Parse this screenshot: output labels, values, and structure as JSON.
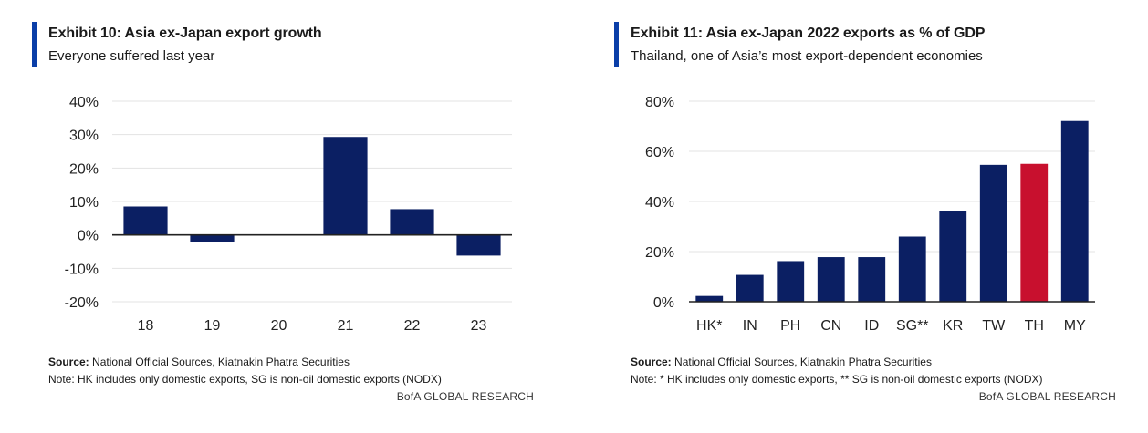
{
  "colors": {
    "accent": "#0a3ea8",
    "bar": "#0b1f63",
    "highlight": "#c8102e",
    "grid": "#e3e3e3",
    "axis": "#222222"
  },
  "exhibit10": {
    "title": "Exhibit 10: Asia ex-Japan export growth",
    "subtitle": "Everyone suffered last year",
    "source_label": "Source:",
    "source_text": " National Official Sources, Kiatnakin Phatra Securities",
    "note": "Note: HK includes only domestic exports, SG is non-oil domestic exports (NODX)",
    "brand": "BofA GLOBAL RESEARCH"
  },
  "exhibit11": {
    "title": "Exhibit 11: Asia ex-Japan 2022 exports as % of GDP",
    "subtitle": "Thailand, one of Asia’s most export-dependent economies",
    "source_label": "Source:",
    "source_text": " National Official Sources, Kiatnakin Phatra Securities",
    "note": "Note: * HK includes only domestic exports, ** SG is non-oil domestic exports (NODX)",
    "brand": "BofA GLOBAL RESEARCH"
  },
  "chart_data": [
    {
      "type": "bar",
      "title": "Exhibit 10: Asia ex-Japan export growth",
      "categories": [
        "18",
        "19",
        "20",
        "21",
        "22",
        "23"
      ],
      "values": [
        8.5,
        -2.0,
        0.0,
        29.3,
        7.7,
        -6.2
      ],
      "ylim": [
        -20,
        40
      ],
      "yticks": [
        -20,
        -10,
        0,
        10,
        20,
        30,
        40
      ],
      "ytick_labels": [
        "-20%",
        "-10%",
        "0%",
        "10%",
        "20%",
        "30%",
        "40%"
      ],
      "grid": true
    },
    {
      "type": "bar",
      "title": "Exhibit 11: Asia ex-Japan 2022 exports as % of GDP",
      "categories": [
        "HK*",
        "IN",
        "PH",
        "CN",
        "ID",
        "SG**",
        "KR",
        "TW",
        "TH",
        "MY"
      ],
      "values": [
        2.3,
        10.7,
        16.2,
        17.8,
        17.8,
        26.0,
        36.2,
        54.6,
        55.0,
        72.1
      ],
      "highlight_category": "TH",
      "ylim": [
        0,
        80
      ],
      "yticks": [
        0,
        20,
        40,
        60,
        80
      ],
      "ytick_labels": [
        "0%",
        "20%",
        "40%",
        "60%",
        "80%"
      ],
      "grid": true
    }
  ]
}
